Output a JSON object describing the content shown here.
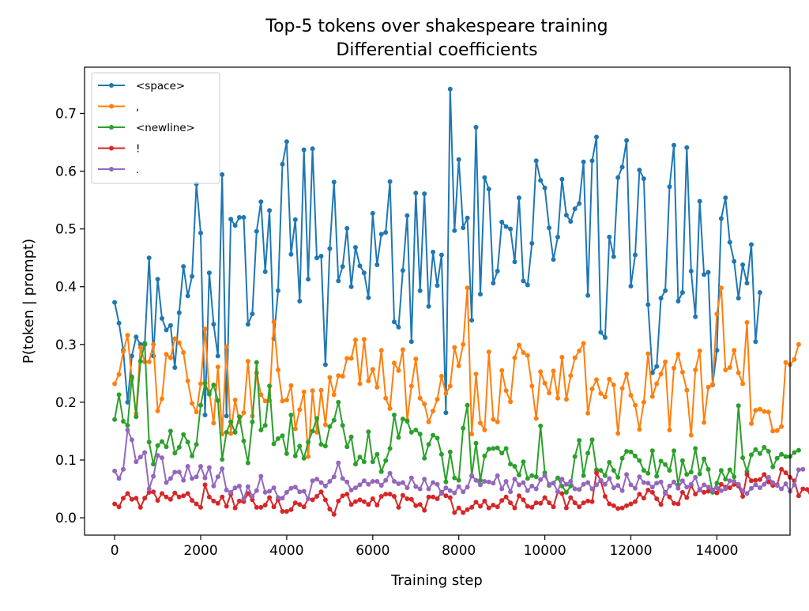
{
  "chart_data": {
    "type": "line",
    "title": "Top-5 tokens over shakespeare training",
    "subtitle": "Differential coefficients",
    "xlabel": "Training step",
    "ylabel": "P(token | prompt)",
    "xlim": [
      -700,
      15700
    ],
    "ylim": [
      -0.03,
      0.78
    ],
    "xticks": [
      0,
      2000,
      4000,
      6000,
      8000,
      10000,
      12000,
      14000
    ],
    "yticks": [
      0.0,
      0.1,
      0.2,
      0.3,
      0.4,
      0.5,
      0.6,
      0.7
    ],
    "ytick_labels": [
      "0.0",
      "0.1",
      "0.2",
      "0.3",
      "0.4",
      "0.5",
      "0.6",
      "0.7"
    ],
    "grid": false,
    "legend_position": "top-left",
    "x_step": 100,
    "x_start": 0,
    "series": [
      {
        "name": "<space>",
        "color": "#1f77b4",
        "values": [
          0.373,
          0.337,
          0.29,
          0.2,
          0.28,
          0.313,
          0.3,
          0.3,
          0.45,
          0.28,
          0.413,
          0.345,
          0.325,
          0.333,
          0.26,
          0.355,
          0.435,
          0.384,
          0.418,
          0.578,
          0.493,
          0.178,
          0.424,
          0.335,
          0.28,
          0.594,
          0.176,
          0.517,
          0.506,
          0.52,
          0.52,
          0.335,
          0.353,
          0.496,
          0.547,
          0.426,
          0.532,
          0.31,
          0.393,
          0.612,
          0.651,
          0.456,
          0.516,
          0.375,
          0.637,
          0.413,
          0.639,
          0.45,
          0.453,
          0.265,
          0.466,
          0.581,
          0.41,
          0.435,
          0.501,
          0.4,
          0.468,
          0.436,
          0.424,
          0.381,
          0.527,
          0.438,
          0.491,
          0.494,
          0.582,
          0.339,
          0.33,
          0.428,
          0.523,
          0.305,
          0.562,
          0.393,
          0.561,
          0.366,
          0.46,
          0.402,
          0.455,
          0.182,
          0.742,
          0.497,
          0.62,
          0.502,
          0.519,
          0.342,
          0.676,
          0.387,
          0.589,
          0.569,
          0.406,
          0.427,
          0.512,
          0.504,
          0.5,
          0.443,
          0.554,
          0.41,
          0.403,
          0.475,
          0.618,
          0.584,
          0.571,
          0.502,
          0.447,
          0.486,
          0.586,
          0.524,
          0.513,
          0.535,
          0.544,
          0.616,
          0.385,
          0.618,
          0.659,
          0.321,
          0.312,
          0.486,
          0.452,
          0.589,
          0.607,
          0.653,
          0.401,
          0.455,
          0.602,
          0.587,
          0.369,
          0.251,
          0.262,
          0.38,
          0.393,
          0.573,
          0.645,
          0.375,
          0.39,
          0.641,
          0.427,
          0.348,
          0.548,
          0.421,
          0.425,
          0.23,
          0.29,
          0.518,
          0.554,
          0.477,
          0.444,
          0.38,
          0.438,
          0.406,
          0.473,
          0.305,
          0.39
        ]
      },
      {
        "name": ",",
        "color": "#ff7f0e",
        "values": [
          0.232,
          0.248,
          0.288,
          0.316,
          0.24,
          0.18,
          0.295,
          0.27,
          0.27,
          0.3,
          0.185,
          0.206,
          0.283,
          0.277,
          0.31,
          0.303,
          0.286,
          0.237,
          0.198,
          0.183,
          0.232,
          0.327,
          0.218,
          0.164,
          0.261,
          0.145,
          0.296,
          0.146,
          0.204,
          0.166,
          0.182,
          0.271,
          0.176,
          0.251,
          0.213,
          0.202,
          0.203,
          0.339,
          0.256,
          0.202,
          0.204,
          0.229,
          0.154,
          0.187,
          0.218,
          0.106,
          0.22,
          0.148,
          0.221,
          0.161,
          0.243,
          0.213,
          0.246,
          0.245,
          0.276,
          0.276,
          0.308,
          0.232,
          0.309,
          0.237,
          0.257,
          0.226,
          0.29,
          0.207,
          0.189,
          0.268,
          0.255,
          0.291,
          0.169,
          0.228,
          0.275,
          0.207,
          0.197,
          0.166,
          0.185,
          0.205,
          0.245,
          0.215,
          0.228,
          0.295,
          0.263,
          0.3,
          0.398,
          0.145,
          0.249,
          0.164,
          0.152,
          0.287,
          0.17,
          0.166,
          0.255,
          0.22,
          0.201,
          0.277,
          0.299,
          0.286,
          0.281,
          0.228,
          0.172,
          0.253,
          0.233,
          0.216,
          0.254,
          0.207,
          0.278,
          0.205,
          0.246,
          0.277,
          0.289,
          0.302,
          0.181,
          0.223,
          0.239,
          0.215,
          0.209,
          0.24,
          0.23,
          0.146,
          0.224,
          0.249,
          0.212,
          0.195,
          0.153,
          0.2,
          0.284,
          0.21,
          0.232,
          0.249,
          0.27,
          0.152,
          0.259,
          0.283,
          0.252,
          0.221,
          0.143,
          0.256,
          0.289,
          0.165,
          0.226,
          0.231,
          0.353,
          0.398,
          0.256,
          0.26,
          0.29,
          0.251,
          0.232,
          0.338,
          0.163,
          0.186,
          0.188,
          0.184,
          0.183,
          0.15,
          0.151,
          0.158,
          0.269,
          0.265,
          0.274,
          0.3
        ]
      },
      {
        "name": "<newline>",
        "color": "#2ca02c",
        "values": [
          0.17,
          0.213,
          0.167,
          0.16,
          0.244,
          0.175,
          0.271,
          0.302,
          0.131,
          0.093,
          0.125,
          0.132,
          0.123,
          0.15,
          0.112,
          0.122,
          0.144,
          0.131,
          0.107,
          0.127,
          0.195,
          0.233,
          0.214,
          0.23,
          0.203,
          0.101,
          0.148,
          0.166,
          0.148,
          0.175,
          0.133,
          0.095,
          0.166,
          0.269,
          0.152,
          0.16,
          0.228,
          0.128,
          0.137,
          0.142,
          0.111,
          0.178,
          0.107,
          0.124,
          0.103,
          0.131,
          0.15,
          0.172,
          0.127,
          0.124,
          0.158,
          0.169,
          0.2,
          0.16,
          0.123,
          0.14,
          0.093,
          0.105,
          0.097,
          0.149,
          0.097,
          0.11,
          0.08,
          0.099,
          0.12,
          0.178,
          0.139,
          0.171,
          0.167,
          0.148,
          0.152,
          0.145,
          0.103,
          0.127,
          0.143,
          0.138,
          0.11,
          0.062,
          0.114,
          0.069,
          0.065,
          0.155,
          0.195,
          0.072,
          0.129,
          0.065,
          0.107,
          0.119,
          0.12,
          0.121,
          0.112,
          0.12,
          0.093,
          0.089,
          0.074,
          0.097,
          0.068,
          0.073,
          0.071,
          0.159,
          0.078,
          0.056,
          0.06,
          0.069,
          0.055,
          0.044,
          0.055,
          0.106,
          0.134,
          0.073,
          0.112,
          0.135,
          0.083,
          0.082,
          0.073,
          0.096,
          0.082,
          0.07,
          0.103,
          0.115,
          0.114,
          0.107,
          0.099,
          0.082,
          0.077,
          0.116,
          0.072,
          0.098,
          0.092,
          0.082,
          0.116,
          0.057,
          0.099,
          0.075,
          0.079,
          0.12,
          0.076,
          0.102,
          0.084,
          0.044,
          0.06,
          0.082,
          0.067,
          0.083,
          0.071,
          0.194,
          0.104,
          0.08,
          0.109,
          0.118,
          0.111,
          0.122,
          0.115,
          0.088,
          0.103,
          0.11,
          0.106,
          0.106,
          0.113,
          0.117
        ]
      },
      {
        "name": "!",
        "color": "#d62728",
        "values": [
          0.024,
          0.019,
          0.034,
          0.042,
          0.032,
          0.034,
          0.018,
          0.034,
          0.044,
          0.045,
          0.03,
          0.042,
          0.036,
          0.032,
          0.043,
          0.036,
          0.038,
          0.042,
          0.03,
          0.024,
          0.018,
          0.057,
          0.036,
          0.029,
          0.025,
          0.036,
          0.02,
          0.041,
          0.017,
          0.029,
          0.028,
          0.042,
          0.031,
          0.018,
          0.018,
          0.022,
          0.035,
          0.019,
          0.031,
          0.011,
          0.011,
          0.014,
          0.026,
          0.023,
          0.019,
          0.033,
          0.031,
          0.037,
          0.045,
          0.031,
          0.015,
          0.006,
          0.029,
          0.038,
          0.041,
          0.023,
          0.028,
          0.031,
          0.028,
          0.023,
          0.033,
          0.022,
          0.037,
          0.041,
          0.041,
          0.037,
          0.018,
          0.039,
          0.033,
          0.032,
          0.021,
          0.023,
          0.013,
          0.036,
          0.036,
          0.033,
          0.044,
          0.038,
          0.035,
          0.009,
          0.017,
          0.009,
          0.014,
          0.018,
          0.027,
          0.02,
          0.029,
          0.017,
          0.022,
          0.019,
          0.03,
          0.036,
          0.026,
          0.017,
          0.038,
          0.031,
          0.02,
          0.018,
          0.026,
          0.025,
          0.035,
          0.026,
          0.019,
          0.045,
          0.042,
          0.017,
          0.035,
          0.026,
          0.019,
          0.026,
          0.029,
          0.028,
          0.078,
          0.064,
          0.037,
          0.024,
          0.021,
          0.016,
          0.017,
          0.021,
          0.024,
          0.028,
          0.041,
          0.034,
          0.048,
          0.044,
          0.033,
          0.023,
          0.044,
          0.036,
          0.025,
          0.024,
          0.044,
          0.035,
          0.056,
          0.041,
          0.049,
          0.044,
          0.046,
          0.048,
          0.043,
          0.058,
          0.053,
          0.052,
          0.058,
          0.055,
          0.037,
          0.075,
          0.064,
          0.065,
          0.066,
          0.075,
          0.062,
          0.056,
          0.057,
          0.084,
          0.078,
          0.07,
          0.064,
          0.038,
          0.05,
          0.049,
          0.034,
          0.052,
          0.06,
          0.05,
          0.066,
          0.041
        ]
      },
      {
        "name": ".",
        "color": "#9467bd",
        "values": [
          0.081,
          0.068,
          0.084,
          0.152,
          0.135,
          0.097,
          0.105,
          0.113,
          0.05,
          0.072,
          0.108,
          0.104,
          0.061,
          0.068,
          0.079,
          0.079,
          0.065,
          0.089,
          0.068,
          0.071,
          0.089,
          0.069,
          0.087,
          0.055,
          0.071,
          0.085,
          0.048,
          0.044,
          0.052,
          0.055,
          0.033,
          0.054,
          0.037,
          0.047,
          0.072,
          0.044,
          0.046,
          0.052,
          0.035,
          0.034,
          0.044,
          0.051,
          0.053,
          0.045,
          0.046,
          0.033,
          0.064,
          0.067,
          0.061,
          0.055,
          0.063,
          0.071,
          0.095,
          0.068,
          0.062,
          0.048,
          0.052,
          0.057,
          0.064,
          0.058,
          0.063,
          0.063,
          0.056,
          0.065,
          0.077,
          0.063,
          0.059,
          0.061,
          0.052,
          0.069,
          0.054,
          0.05,
          0.067,
          0.05,
          0.061,
          0.058,
          0.042,
          0.052,
          0.047,
          0.043,
          0.054,
          0.045,
          0.053,
          0.073,
          0.065,
          0.057,
          0.063,
          0.062,
          0.06,
          0.073,
          0.05,
          0.063,
          0.045,
          0.067,
          0.057,
          0.061,
          0.047,
          0.055,
          0.05,
          0.066,
          0.073,
          0.058,
          0.06,
          0.045,
          0.067,
          0.058,
          0.063,
          0.05,
          0.049,
          0.058,
          0.061,
          0.05,
          0.057,
          0.065,
          0.058,
          0.068,
          0.052,
          0.056,
          0.047,
          0.075,
          0.057,
          0.051,
          0.071,
          0.061,
          0.06,
          0.053,
          0.06,
          0.062,
          0.042,
          0.055,
          0.062,
          0.051,
          0.064,
          0.053,
          0.058,
          0.07,
          0.048,
          0.057,
          0.053,
          0.047,
          0.052,
          0.047,
          0.05,
          0.064,
          0.063,
          0.058,
          0.047,
          0.042,
          0.051,
          0.057,
          0.052,
          0.058,
          0.07,
          0.061,
          0.056,
          0.05,
          0.059,
          0.046,
          0.057,
          0.083,
          0.084
        ]
      }
    ]
  }
}
